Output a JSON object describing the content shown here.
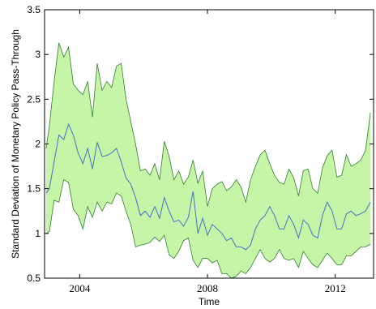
{
  "chart_data": {
    "type": "area",
    "xlabel": "Time",
    "ylabel": "Standard Deviation of Monetary Policy Pass-Through",
    "xlim": [
      2002.9,
      2013.2
    ],
    "ylim": [
      0.5,
      3.5
    ],
    "xticks": [
      2004,
      2008,
      2012
    ],
    "yticks": [
      0.5,
      1,
      1.5,
      2,
      2.5,
      3,
      3.5
    ],
    "ytick_labels": [
      "0.5",
      "1",
      "1.5",
      "2",
      "2.5",
      "3",
      "3.5"
    ],
    "grid": false,
    "legend": "none",
    "colors": {
      "band_fill": "#c6f5a8",
      "band_edge": "#2f7d2f",
      "median": "#4a6fc9",
      "axis": "#000000"
    },
    "x": [
      2002.95,
      2003.05,
      2003.2,
      2003.35,
      2003.5,
      2003.65,
      2003.8,
      2003.95,
      2004.1,
      2004.25,
      2004.4,
      2004.55,
      2004.7,
      2004.85,
      2005.0,
      2005.15,
      2005.3,
      2005.45,
      2005.6,
      2005.75,
      2005.9,
      2006.05,
      2006.2,
      2006.35,
      2006.5,
      2006.65,
      2006.8,
      2006.95,
      2007.1,
      2007.25,
      2007.4,
      2007.55,
      2007.7,
      2007.85,
      2008.0,
      2008.15,
      2008.3,
      2008.45,
      2008.6,
      2008.75,
      2008.9,
      2009.05,
      2009.2,
      2009.35,
      2009.5,
      2009.65,
      2009.8,
      2009.95,
      2010.1,
      2010.25,
      2010.4,
      2010.55,
      2010.7,
      2010.85,
      2011.0,
      2011.15,
      2011.3,
      2011.45,
      2011.6,
      2011.75,
      2011.9,
      2012.05,
      2012.2,
      2012.35,
      2012.5,
      2012.65,
      2012.8,
      2012.95,
      2013.1
    ],
    "series": [
      {
        "role": "upper",
        "values": [
          1.95,
          2.2,
          2.7,
          3.13,
          2.97,
          3.08,
          2.67,
          2.6,
          2.55,
          2.7,
          2.3,
          2.9,
          2.6,
          2.7,
          2.63,
          2.87,
          2.9,
          2.5,
          2.25,
          2.0,
          1.7,
          1.72,
          1.65,
          1.78,
          1.6,
          2.03,
          1.86,
          1.6,
          1.7,
          1.55,
          1.63,
          1.82,
          1.56,
          1.7,
          1.3,
          1.5,
          1.55,
          1.58,
          1.48,
          1.52,
          1.6,
          1.52,
          1.35,
          1.6,
          1.75,
          1.88,
          1.93,
          1.78,
          1.65,
          1.57,
          1.55,
          1.72,
          1.62,
          1.42,
          1.7,
          1.72,
          1.5,
          1.45,
          1.73,
          1.87,
          1.93,
          1.63,
          1.65,
          1.88,
          1.75,
          1.78,
          1.82,
          1.93,
          2.35
        ]
      },
      {
        "role": "median",
        "values": [
          1.45,
          1.5,
          1.8,
          2.1,
          2.05,
          2.22,
          2.1,
          1.9,
          1.78,
          1.95,
          1.72,
          2.02,
          1.86,
          1.87,
          1.9,
          1.95,
          1.8,
          1.62,
          1.55,
          1.4,
          1.2,
          1.25,
          1.18,
          1.3,
          1.17,
          1.4,
          1.25,
          1.13,
          1.15,
          1.08,
          1.18,
          1.47,
          1.0,
          1.17,
          0.98,
          1.1,
          1.05,
          1.0,
          0.92,
          0.95,
          0.85,
          0.85,
          0.82,
          0.87,
          1.05,
          1.15,
          1.2,
          1.3,
          1.2,
          1.05,
          1.05,
          1.2,
          1.1,
          0.95,
          1.15,
          1.1,
          0.98,
          0.95,
          1.2,
          1.35,
          1.25,
          1.05,
          1.05,
          1.22,
          1.25,
          1.2,
          1.22,
          1.25,
          1.35
        ]
      },
      {
        "role": "lower",
        "values": [
          1.0,
          1.02,
          1.37,
          1.35,
          1.6,
          1.57,
          1.27,
          1.2,
          1.05,
          1.3,
          1.18,
          1.35,
          1.25,
          1.35,
          1.33,
          1.45,
          1.42,
          1.25,
          1.1,
          0.85,
          0.87,
          0.88,
          0.9,
          0.96,
          0.91,
          0.98,
          0.76,
          0.72,
          0.8,
          0.92,
          0.95,
          0.7,
          0.62,
          0.72,
          0.72,
          0.67,
          0.7,
          0.55,
          0.55,
          0.5,
          0.52,
          0.58,
          0.55,
          0.62,
          0.72,
          0.82,
          0.72,
          0.68,
          0.72,
          0.82,
          0.72,
          0.7,
          0.72,
          0.62,
          0.8,
          0.72,
          0.65,
          0.62,
          0.7,
          0.78,
          0.72,
          0.65,
          0.65,
          0.75,
          0.75,
          0.8,
          0.85,
          0.85,
          0.88
        ]
      }
    ]
  }
}
